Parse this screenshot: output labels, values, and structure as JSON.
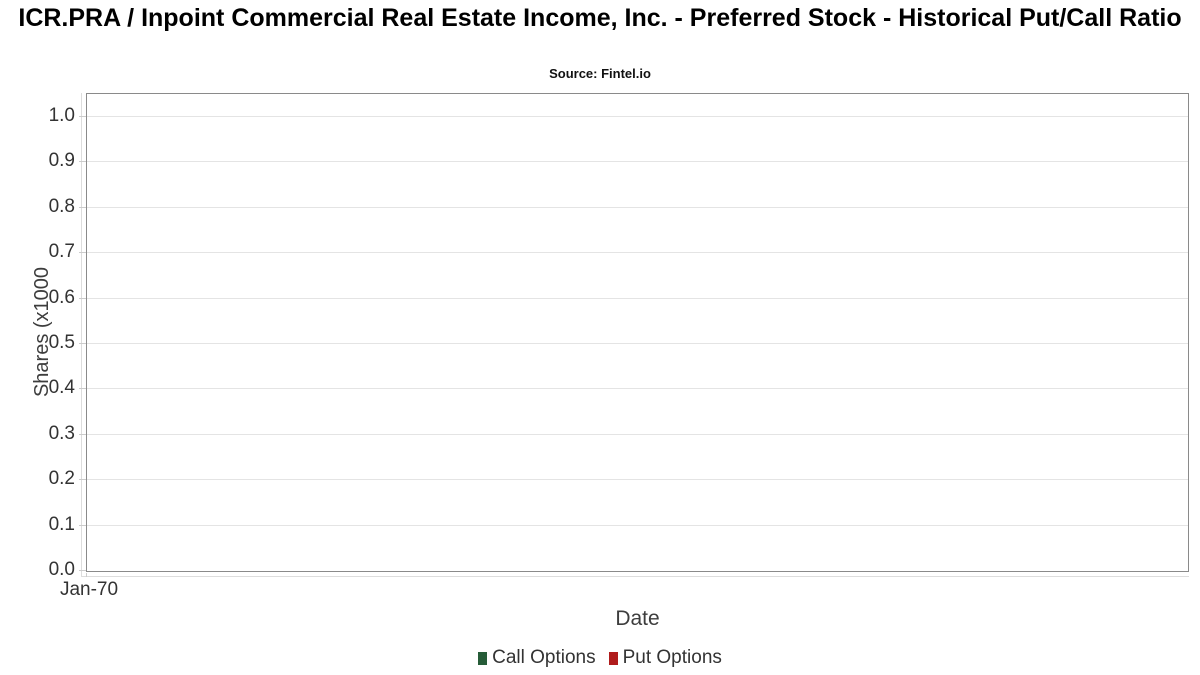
{
  "chart_data": {
    "type": "bar",
    "title": "ICR.PRA / Inpoint Commercial Real Estate Income, Inc. - Preferred Stock - Historical Put/Call Ratio",
    "subtitle": "Source: Fintel.io",
    "xlabel": "Date",
    "ylabel": "Shares (x1000",
    "x_ticks": [
      "Jan-70"
    ],
    "y_ticks": [
      0.0,
      0.1,
      0.2,
      0.3,
      0.4,
      0.5,
      0.6,
      0.7,
      0.8,
      0.9,
      1.0
    ],
    "y_tick_labels": [
      "0.0",
      "0.1",
      "0.2",
      "0.3",
      "0.4",
      "0.5",
      "0.6",
      "0.7",
      "0.8",
      "0.9",
      "1.0"
    ],
    "ylim": [
      0.0,
      1.05
    ],
    "grid": true,
    "legend_position": "bottom",
    "series": [
      {
        "name": "Call Options",
        "color": "#265c38",
        "values": []
      },
      {
        "name": "Put Options",
        "color": "#b01c1c",
        "values": []
      }
    ]
  },
  "colors": {
    "plot_border": "#8a8a8a",
    "gridline": "#e4e4e4",
    "axis_line": "#dddddd",
    "tick": "#cccccc",
    "label_text": "#333333",
    "axis_title_text": "#3d3d3d",
    "title_text": "#000000"
  }
}
